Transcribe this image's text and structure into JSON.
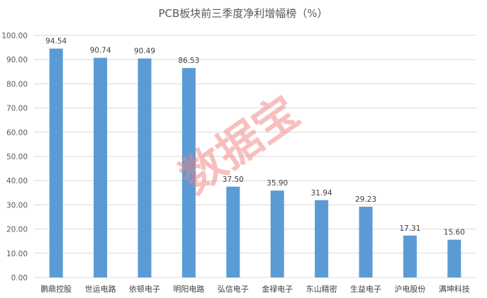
{
  "chart_data": {
    "type": "bar",
    "title": "PCB板块前三季度净利增幅榜（%）",
    "xlabel": "",
    "ylabel": "",
    "categories": [
      "鹏鼎控股",
      "世运电路",
      "依顿电子",
      "明阳电路",
      "弘信电子",
      "金禄电子",
      "东山精密",
      "生益电子",
      "沪电股份",
      "满坤科技"
    ],
    "values": [
      94.54,
      90.74,
      90.49,
      86.53,
      37.5,
      35.9,
      31.94,
      29.23,
      17.31,
      15.6
    ],
    "value_labels": [
      "94.54",
      "90.74",
      "90.49",
      "86.53",
      "37.50",
      "35.90",
      "31.94",
      "29.23",
      "17.31",
      "15.60"
    ],
    "ylim": [
      0,
      100
    ],
    "yticks": [
      0,
      10,
      20,
      30,
      40,
      50,
      60,
      70,
      80,
      90,
      100
    ],
    "ytick_labels": [
      "0.00",
      "10.00",
      "20.00",
      "30.00",
      "40.00",
      "50.00",
      "60.00",
      "70.00",
      "80.00",
      "90.00",
      "100.00"
    ],
    "grid": true,
    "legend": "none",
    "bar_color": "#5b9bd5",
    "grid_color": "#d9d9d9"
  },
  "watermark": {
    "text": "数据宝",
    "color": "#f08080"
  }
}
